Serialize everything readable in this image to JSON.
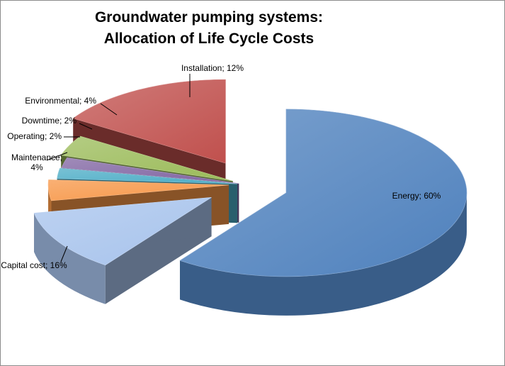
{
  "chart_data": {
    "type": "pie",
    "title_lines": [
      "Groundwater pumping systems:",
      "Allocation of Life Cycle Costs"
    ],
    "slices": [
      {
        "label": "Energy; 60%",
        "value": 60,
        "color": "#4f81bd"
      },
      {
        "label": "Installation; 12%",
        "value": 12,
        "color": "#a7c3ec"
      },
      {
        "label": "Environmental; 4%",
        "value": 4,
        "color": "#f79646"
      },
      {
        "label": "Downtime; 2%",
        "value": 2,
        "color": "#4bacc6"
      },
      {
        "label": "Operating; 2%",
        "value": 2,
        "color": "#8064a2"
      },
      {
        "label": "Maintenance;",
        "label2": "4%",
        "value": 4,
        "color": "#9bbb59"
      },
      {
        "label": "Capital cost; 16%",
        "value": 16,
        "color": "#c0504d"
      }
    ],
    "style": "3d-exploded"
  }
}
